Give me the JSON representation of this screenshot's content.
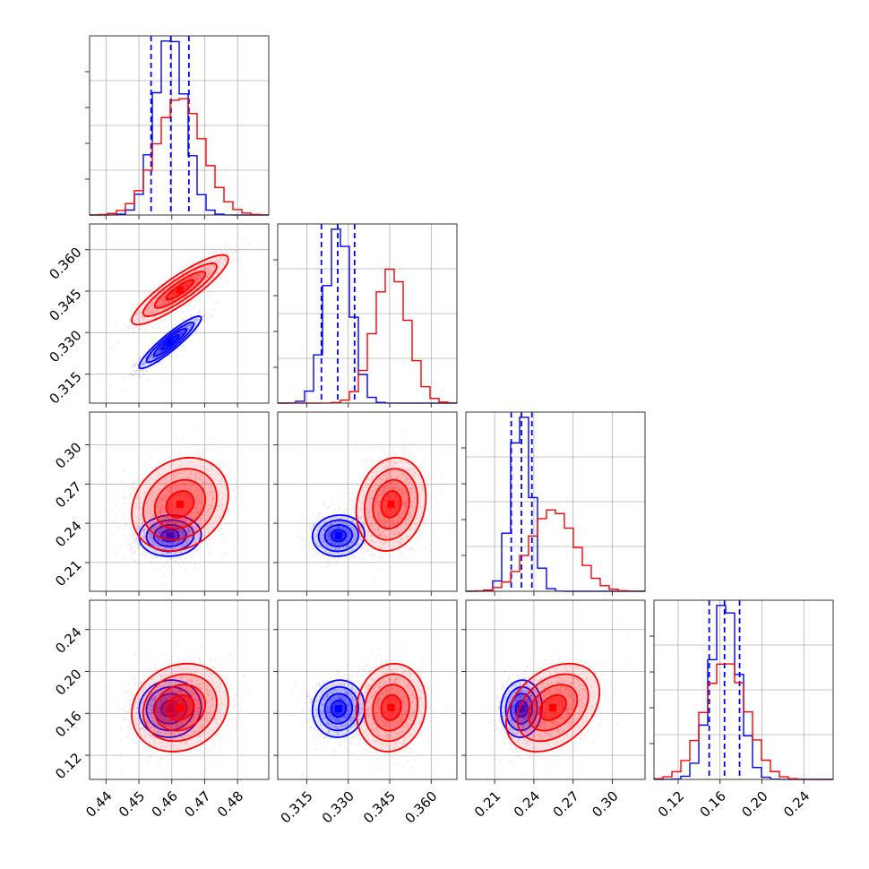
{
  "chart_data": {
    "type": "corner",
    "grid": true,
    "colors": {
      "blue": "#0000ff",
      "red": "#ff0000",
      "frame": "#333333",
      "grid": "#b0b0b0"
    },
    "params": [
      {
        "range": [
          0.435,
          0.4895
        ],
        "ticks": [
          0.44,
          0.45,
          0.46,
          0.47,
          0.48
        ],
        "tick_labels": [
          "0.44",
          "0.45",
          "0.46",
          "0.47",
          "0.48"
        ]
      },
      {
        "range": [
          0.3045,
          0.3693
        ],
        "ticks": [
          0.315,
          0.33,
          0.345,
          0.36
        ],
        "tick_labels": [
          "0.315",
          "0.330",
          "0.345",
          "0.360"
        ]
      },
      {
        "range": [
          0.188,
          0.325
        ],
        "ticks": [
          0.21,
          0.24,
          0.27,
          0.3
        ],
        "tick_labels": [
          "0.21",
          "0.24",
          "0.27",
          "0.30"
        ]
      },
      {
        "range": [
          0.097,
          0.268
        ],
        "ticks": [
          0.12,
          0.16,
          0.2,
          0.24
        ],
        "tick_labels": [
          "0.12",
          "0.16",
          "0.20",
          "0.24"
        ]
      }
    ],
    "series": [
      {
        "color": "blue",
        "mean": [
          0.4595,
          0.3265,
          0.2305,
          0.1645
        ],
        "std": [
          0.0045,
          0.0045,
          0.0075,
          0.013
        ],
        "quantiles": [
          [
            0.4537,
            0.4597,
            0.4652
          ],
          [
            0.3203,
            0.3262,
            0.3323
          ],
          [
            0.2227,
            0.2305,
            0.2385
          ],
          [
            0.1497,
            0.1643,
            0.1787
          ]
        ],
        "corr": [
          [
            1,
            0.92,
            0.05,
            0.05
          ],
          [
            0.92,
            1,
            0.05,
            0.05
          ],
          [
            0.05,
            0.05,
            1,
            0.05
          ],
          [
            0.05,
            0.05,
            0.05,
            1
          ]
        ]
      },
      {
        "color": "red",
        "mean": [
          0.4625,
          0.3455,
          0.2545,
          0.1655
        ],
        "std": [
          0.007,
          0.006,
          0.017,
          0.02
        ],
        "corr": [
          [
            1,
            0.88,
            0.2,
            0.15
          ],
          [
            0.88,
            1,
            0.15,
            0.1
          ],
          [
            0.2,
            0.15,
            1,
            0.35
          ],
          [
            0.15,
            0.1,
            0.35,
            1
          ]
        ]
      }
    ]
  }
}
